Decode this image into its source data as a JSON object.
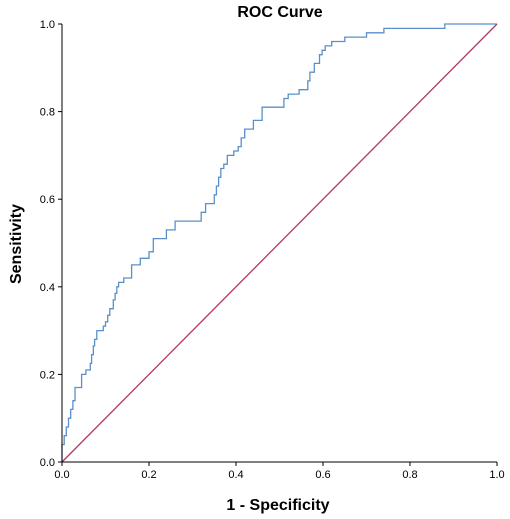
{
  "chart_data": {
    "type": "line",
    "title": "ROC Curve",
    "xlabel": "1 - Specificity",
    "ylabel": "Sensitivity",
    "xlim": [
      0,
      1
    ],
    "ylim": [
      0,
      1
    ],
    "x_ticks": [
      "0.0",
      "0.2",
      "0.4",
      "0.6",
      "0.8",
      "1.0"
    ],
    "y_ticks": [
      "0.0",
      "0.2",
      "0.4",
      "0.6",
      "0.8",
      "1.0"
    ],
    "grid": false,
    "legend": "none",
    "series": [
      {
        "color": "#5b8fc9",
        "x": [
          0.0,
          0.0,
          0.005,
          0.005,
          0.01,
          0.01,
          0.015,
          0.015,
          0.02,
          0.02,
          0.025,
          0.025,
          0.03,
          0.03,
          0.045,
          0.045,
          0.055,
          0.055,
          0.065,
          0.065,
          0.068,
          0.068,
          0.072,
          0.072,
          0.075,
          0.075,
          0.08,
          0.08,
          0.095,
          0.095,
          0.1,
          0.1,
          0.105,
          0.105,
          0.11,
          0.11,
          0.118,
          0.118,
          0.122,
          0.122,
          0.126,
          0.126,
          0.13,
          0.13,
          0.142,
          0.142,
          0.16,
          0.16,
          0.18,
          0.18,
          0.2,
          0.2,
          0.21,
          0.21,
          0.24,
          0.24,
          0.26,
          0.26,
          0.32,
          0.32,
          0.33,
          0.33,
          0.35,
          0.35,
          0.355,
          0.355,
          0.36,
          0.36,
          0.365,
          0.365,
          0.372,
          0.372,
          0.38,
          0.38,
          0.395,
          0.395,
          0.405,
          0.405,
          0.412,
          0.412,
          0.42,
          0.42,
          0.44,
          0.44,
          0.46,
          0.46,
          0.51,
          0.51,
          0.52,
          0.52,
          0.545,
          0.545,
          0.565,
          0.565,
          0.57,
          0.57,
          0.58,
          0.58,
          0.592,
          0.592,
          0.598,
          0.598,
          0.605,
          0.605,
          0.62,
          0.62,
          0.65,
          0.65,
          0.7,
          0.7,
          0.74,
          0.74,
          0.88,
          0.88,
          1.0
        ],
        "y": [
          0.0,
          0.04,
          0.04,
          0.06,
          0.06,
          0.08,
          0.08,
          0.1,
          0.1,
          0.12,
          0.12,
          0.14,
          0.14,
          0.17,
          0.17,
          0.2,
          0.2,
          0.21,
          0.21,
          0.225,
          0.225,
          0.245,
          0.245,
          0.265,
          0.265,
          0.28,
          0.28,
          0.3,
          0.3,
          0.31,
          0.31,
          0.32,
          0.32,
          0.335,
          0.335,
          0.35,
          0.35,
          0.37,
          0.37,
          0.385,
          0.385,
          0.4,
          0.4,
          0.41,
          0.41,
          0.42,
          0.42,
          0.45,
          0.45,
          0.465,
          0.465,
          0.48,
          0.48,
          0.51,
          0.51,
          0.53,
          0.53,
          0.55,
          0.55,
          0.57,
          0.57,
          0.59,
          0.59,
          0.61,
          0.61,
          0.63,
          0.63,
          0.65,
          0.65,
          0.67,
          0.67,
          0.68,
          0.68,
          0.7,
          0.7,
          0.71,
          0.71,
          0.72,
          0.72,
          0.74,
          0.74,
          0.76,
          0.76,
          0.78,
          0.78,
          0.81,
          0.81,
          0.83,
          0.83,
          0.84,
          0.84,
          0.85,
          0.85,
          0.87,
          0.87,
          0.89,
          0.89,
          0.91,
          0.91,
          0.93,
          0.93,
          0.94,
          0.94,
          0.95,
          0.95,
          0.96,
          0.96,
          0.97,
          0.97,
          0.98,
          0.98,
          0.99,
          0.99,
          1.0,
          1.0
        ]
      },
      {
        "color": "#b33a5e",
        "x": [
          0,
          1
        ],
        "y": [
          0,
          1
        ]
      }
    ]
  }
}
